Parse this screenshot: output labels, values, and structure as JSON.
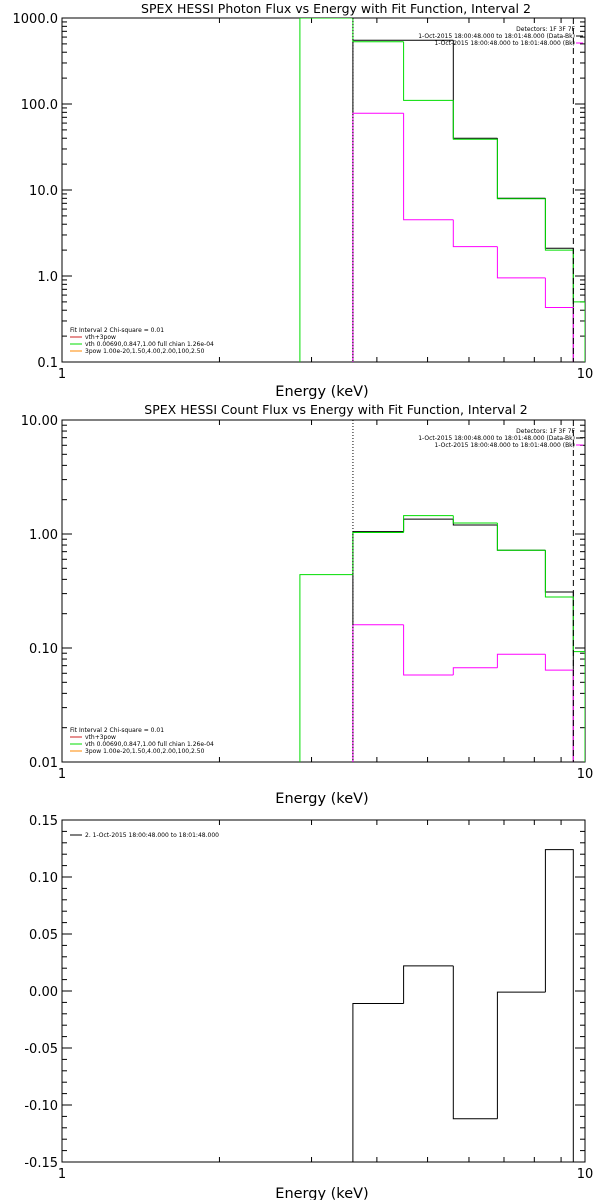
{
  "chart_data": [
    {
      "type": "line",
      "title": "SPEX HESSI Photon Flux vs Energy with Fit Function, Interval 2",
      "xlabel": "Energy (keV)",
      "ylabel": "",
      "x_scale": "log",
      "y_scale": "log",
      "xlim": [
        1,
        10
      ],
      "ylim": [
        0.1,
        1000
      ],
      "x_tick_labels": [
        {
          "v": 1,
          "t": "1"
        },
        {
          "v": 10,
          "t": "10"
        }
      ],
      "y_tick_labels": [
        {
          "v": 0.1,
          "t": "0.1"
        },
        {
          "v": 1,
          "t": "1.0"
        },
        {
          "v": 10,
          "t": "10.0"
        },
        {
          "v": 100,
          "t": "100.0"
        },
        {
          "v": 1000,
          "t": "1000.0"
        }
      ],
      "info_lines": [
        "Detectors: 1F 3F 7F",
        "1-Oct-2015 18:00:48.000 to 18:01:48.000 (Data-Bk)",
        "1-Oct-2015 18:00:48.000 to 18:01:48.000 (Bk)"
      ],
      "legend_lines": [
        "Fit Interval  2   Chi-square = 0.01",
        "vth+3pow",
        "vth 0.00690,0.847,1.00  full chian 1.26e-04",
        "3pow 1.00e-20,1.50,4.00,2.00,100,2.50"
      ],
      "legend_colors": [
        "#000000",
        "#cc2222",
        "#00dd00",
        "#ff8800"
      ],
      "vlines": [
        {
          "x": 3.6,
          "color": "#000000",
          "style": "dotted"
        },
        {
          "x": 9.5,
          "color": "#000000",
          "style": "dashed"
        }
      ],
      "series": [
        {
          "color": "#000000",
          "edges": [
            3.6,
            4.5,
            5.6,
            6.8,
            8.4,
            9.5,
            10.0
          ],
          "values": [
            550,
            550,
            40,
            8.0,
            2.1,
            null
          ]
        },
        {
          "color": "#00dd00",
          "edges": [
            2.85,
            3.6,
            4.5,
            5.6,
            6.8,
            8.4,
            9.5,
            10.0
          ],
          "values": [
            1000,
            530,
            110,
            39,
            7.9,
            2.0,
            0.5
          ]
        },
        {
          "color": "#ff00ff",
          "edges": [
            3.6,
            4.5,
            5.6,
            6.8,
            8.4,
            9.5,
            10.0
          ],
          "values": [
            78,
            4.5,
            2.2,
            0.95,
            0.43,
            null
          ]
        }
      ]
    },
    {
      "type": "line",
      "title": "SPEX HESSI Count Flux vs Energy with Fit Function, Interval 2",
      "xlabel": "Energy (keV)",
      "ylabel": "",
      "x_scale": "log",
      "y_scale": "log",
      "xlim": [
        1,
        10
      ],
      "ylim": [
        0.01,
        10
      ],
      "x_tick_labels": [
        {
          "v": 1,
          "t": "1"
        },
        {
          "v": 10,
          "t": "10"
        }
      ],
      "y_tick_labels": [
        {
          "v": 0.01,
          "t": "0.01"
        },
        {
          "v": 0.1,
          "t": "0.10"
        },
        {
          "v": 1,
          "t": "1.00"
        },
        {
          "v": 10,
          "t": "10.00"
        }
      ],
      "info_lines": [
        "Detectors: 1F 3F 7F",
        "1-Oct-2015 18:00:48.000 to 18:01:48.000 (Data-Bk)",
        "1-Oct-2015 18:00:48.000 to 18:01:48.000 (Bk)"
      ],
      "legend_lines": [
        "Fit Interval  2   Chi-square = 0.01",
        "vth+3pow",
        "vth 0.00690,0.847,1.00  full chian 1.26e-04",
        "3pow 1.00e-20,1.50,4.00,2.00,100,2.50"
      ],
      "legend_colors": [
        "#000000",
        "#cc2222",
        "#00dd00",
        "#ff8800"
      ],
      "vlines": [
        {
          "x": 3.6,
          "color": "#000000",
          "style": "dotted"
        },
        {
          "x": 9.5,
          "color": "#000000",
          "style": "dashed"
        }
      ],
      "series": [
        {
          "color": "#000000",
          "edges": [
            3.6,
            4.5,
            5.6,
            6.8,
            8.4,
            9.5,
            10.0
          ],
          "values": [
            1.05,
            1.35,
            1.2,
            0.72,
            0.31,
            null
          ]
        },
        {
          "color": "#00dd00",
          "edges": [
            2.85,
            3.6,
            4.5,
            5.6,
            6.8,
            8.4,
            9.5,
            10.0
          ],
          "values": [
            0.44,
            1.03,
            1.45,
            1.25,
            0.72,
            0.28,
            0.093
          ]
        },
        {
          "color": "#ff00ff",
          "edges": [
            3.6,
            4.5,
            5.6,
            6.8,
            8.4,
            9.5,
            10.0
          ],
          "values": [
            0.16,
            0.058,
            0.067,
            0.088,
            0.064,
            null
          ]
        }
      ]
    },
    {
      "type": "line",
      "title": "",
      "xlabel": "Energy (keV)",
      "ylabel": "",
      "x_scale": "log",
      "y_scale": "linear",
      "xlim": [
        1,
        10
      ],
      "ylim": [
        -0.15,
        0.15
      ],
      "x_tick_labels": [
        {
          "v": 1,
          "t": "1"
        },
        {
          "v": 10,
          "t": "10"
        }
      ],
      "y_tick_labels": [
        {
          "v": 0.15,
          "t": "0.15"
        },
        {
          "v": 0.1,
          "t": "0.10"
        },
        {
          "v": 0.05,
          "t": "0.05"
        },
        {
          "v": 0,
          "t": "0.00"
        },
        {
          "v": -0.05,
          "t": "-0.05"
        },
        {
          "v": -0.1,
          "t": "-0.10"
        },
        {
          "v": -0.15,
          "t": "-0.15"
        }
      ],
      "legend_lines": [
        "2.  1-Oct-2015 18:00:48.000 to 18:01:48.000"
      ],
      "legend_colors": [
        "#000000"
      ],
      "series": [
        {
          "color": "#000000",
          "edges": [
            3.6,
            4.5,
            5.6,
            6.8,
            8.4,
            9.5
          ],
          "values": [
            -0.011,
            0.022,
            -0.112,
            -0.001,
            0.124
          ]
        }
      ]
    }
  ]
}
